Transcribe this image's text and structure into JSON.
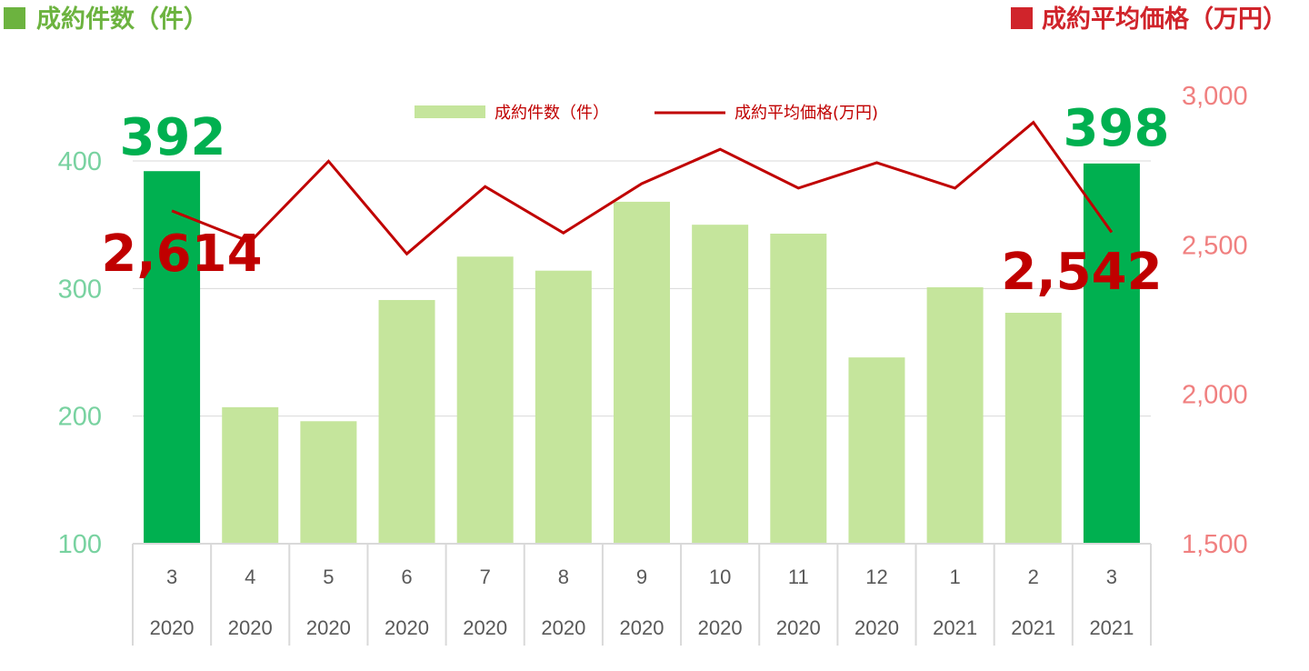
{
  "titles": {
    "left": "成約件数（件）",
    "right": "成約平均価格（万円）"
  },
  "colors": {
    "title_left": "#6cb33f",
    "title_right": "#d0242b",
    "bar_highlight": "#00b050",
    "bar_normal": "#c5e59c",
    "line": "#c00000",
    "left_tick": "#78d2a0",
    "right_tick": "#f08080",
    "grid": "#d9d9d9",
    "axis": "#d9d9d9",
    "callout_count": "#00b050",
    "callout_price": "#c00000"
  },
  "chart_data": {
    "type": "bar",
    "categories": [
      [
        "3",
        "2020"
      ],
      [
        "4",
        "2020"
      ],
      [
        "5",
        "2020"
      ],
      [
        "6",
        "2020"
      ],
      [
        "7",
        "2020"
      ],
      [
        "8",
        "2020"
      ],
      [
        "9",
        "2020"
      ],
      [
        "10",
        "2020"
      ],
      [
        "11",
        "2020"
      ],
      [
        "12",
        "2020"
      ],
      [
        "1",
        "2021"
      ],
      [
        "2",
        "2021"
      ],
      [
        "3",
        "2021"
      ]
    ],
    "series": [
      {
        "name": "成約件数（件）",
        "type": "bar",
        "axis": "left",
        "values": [
          392,
          207,
          196,
          291,
          325,
          314,
          368,
          350,
          343,
          246,
          301,
          281,
          398
        ],
        "highlight_indices": [
          0,
          12
        ]
      },
      {
        "name": "成約平均価格(万円)",
        "type": "line",
        "axis": "right",
        "values": [
          2614,
          2510,
          2780,
          2470,
          2695,
          2540,
          2705,
          2820,
          2690,
          2775,
          2690,
          2910,
          2542
        ]
      }
    ],
    "left_axis": {
      "min": 100,
      "max": 400,
      "ticks": [
        "100",
        "200",
        "300",
        "400"
      ]
    },
    "right_axis": {
      "min": 1500,
      "max": 3000,
      "ticks": [
        "1,500",
        "2,000",
        "2,500",
        "3,000"
      ]
    },
    "callouts": {
      "count_start": "392",
      "count_end": "398",
      "price_start": "2,614",
      "price_end": "2,542"
    },
    "grid": true,
    "legend": "top-center"
  }
}
